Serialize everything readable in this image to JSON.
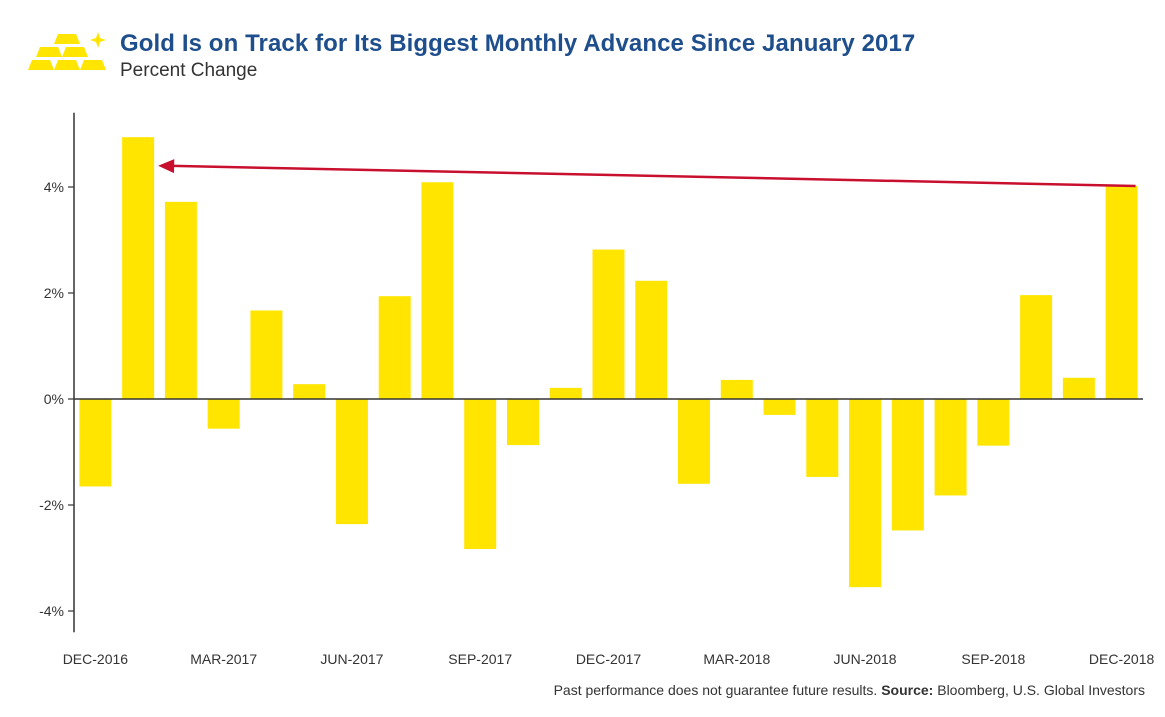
{
  "header": {
    "title": "Gold Is on Track for Its Biggest Monthly Advance Since January 2017",
    "subtitle": "Percent Change",
    "logo_icon": "gold-bars-icon"
  },
  "footer": {
    "disclaimer": "Past performance does not guarantee future results.",
    "source_label": "Source:",
    "source_text": "Bloomberg, U.S. Global Investors"
  },
  "colors": {
    "bar": "#FFE500",
    "arrow": "#C8102E",
    "title": "#1F4E8C",
    "axis": "#333333"
  },
  "chart_data": {
    "type": "bar",
    "title": "Gold Is on Track for Its Biggest Monthly Advance Since January 2017",
    "subtitle": "Percent Change",
    "xlabel": "",
    "ylabel": "",
    "ylim": [
      -4.4,
      5.4
    ],
    "yticks": [
      -4,
      -2,
      0,
      2,
      4
    ],
    "ytick_labels": [
      "-4%",
      "-2%",
      "0%",
      "2%",
      "4%"
    ],
    "grid": false,
    "categories": [
      "DEC-2016",
      "JAN-2017",
      "FEB-2017",
      "MAR-2017",
      "APR-2017",
      "MAY-2017",
      "JUN-2017",
      "JUL-2017",
      "AUG-2017",
      "SEP-2017",
      "OCT-2017",
      "NOV-2017",
      "DEC-2017",
      "JAN-2018",
      "FEB-2018",
      "MAR-2018",
      "APR-2018",
      "MAY-2018",
      "JUN-2018",
      "JUL-2018",
      "AUG-2018",
      "SEP-2018",
      "OCT-2018",
      "NOV-2018",
      "DEC-2018"
    ],
    "x_tick_labels": [
      "DEC-2016",
      "",
      "",
      "MAR-2017",
      "",
      "",
      "JUN-2017",
      "",
      "",
      "SEP-2017",
      "",
      "",
      "DEC-2017",
      "",
      "",
      "MAR-2018",
      "",
      "",
      "JUN-2018",
      "",
      "",
      "SEP-2018",
      "",
      "",
      "DEC-2018"
    ],
    "values": [
      -1.65,
      4.94,
      3.72,
      -0.56,
      1.67,
      0.28,
      -2.36,
      1.94,
      4.09,
      -2.83,
      -0.87,
      0.21,
      2.82,
      2.23,
      -1.6,
      0.36,
      -0.3,
      -1.47,
      -3.55,
      -2.48,
      -1.82,
      -0.88,
      1.96,
      0.4,
      4.02
    ],
    "annotations": [
      {
        "type": "arrow",
        "from_category": "DEC-2018",
        "from_value": 4.02,
        "to_category": "JAN-2017",
        "to_value": 4.4
      }
    ]
  }
}
